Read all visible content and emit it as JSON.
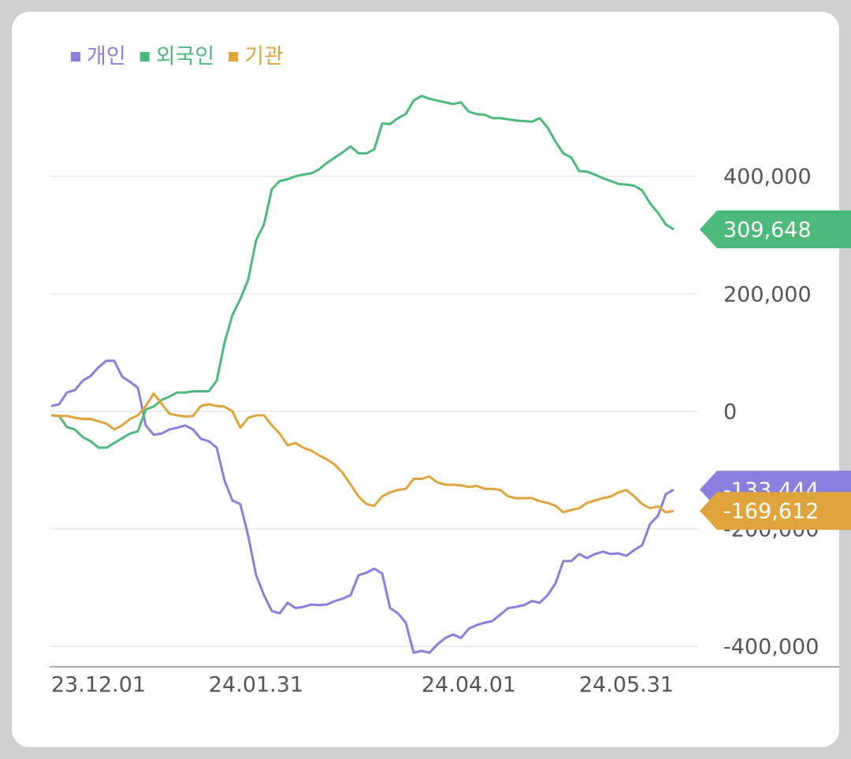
{
  "chart_data": {
    "type": "line",
    "categories": [
      null,
      null,
      null,
      null,
      null,
      null,
      "23.12.01",
      null,
      null,
      null,
      null,
      null,
      null,
      null,
      null,
      null,
      null,
      null,
      null,
      null,
      null,
      null,
      null,
      null,
      null,
      null,
      "24.01.31",
      null,
      null,
      null,
      null,
      null,
      null,
      null,
      null,
      null,
      null,
      null,
      null,
      null,
      null,
      null,
      null,
      null,
      null,
      null,
      null,
      null,
      null,
      null,
      null,
      null,
      null,
      "24.04.01",
      null,
      null,
      null,
      null,
      null,
      null,
      null,
      null,
      null,
      null,
      null,
      null,
      null,
      null,
      null,
      null,
      null,
      null,
      null,
      "24.05.31",
      null,
      null,
      null,
      null,
      null,
      null
    ],
    "series": [
      {
        "name": "개인",
        "color": "#8a7fdc",
        "last_label": "-133,444",
        "values": [
          9000,
          12000,
          32000,
          36000,
          52000,
          60000,
          75000,
          86000,
          86000,
          59000,
          50000,
          40000,
          -24000,
          -40000,
          -38000,
          -31000,
          -28000,
          -24000,
          -31000,
          -47000,
          -51000,
          -62000,
          -118000,
          -152000,
          -158000,
          -212000,
          -279000,
          -313000,
          -340000,
          -344000,
          -326000,
          -335000,
          -333000,
          -329000,
          -330000,
          -329000,
          -323000,
          -319000,
          -313000,
          -279000,
          -275000,
          -268000,
          -276000,
          -335000,
          -344000,
          -360000,
          -411000,
          -408000,
          -411000,
          -397000,
          -386000,
          -380000,
          -386000,
          -370000,
          -364000,
          -360000,
          -357000,
          -346000,
          -335000,
          -333000,
          -330000,
          -323000,
          -326000,
          -313000,
          -293000,
          -255000,
          -255000,
          -243000,
          -250000,
          -243000,
          -239000,
          -243000,
          -242000,
          -246000,
          -236000,
          -228000,
          -192000,
          -178000,
          -141000,
          -133444
        ]
      },
      {
        "name": "외국인",
        "color": "#4db97a",
        "last_label": "309,648",
        "values": [
          -7000,
          -8000,
          -27000,
          -31000,
          -44000,
          -51000,
          -62000,
          -62000,
          -54000,
          -46000,
          -38000,
          -34000,
          3000,
          8000,
          19000,
          25000,
          32000,
          32000,
          34000,
          34000,
          34000,
          52000,
          117000,
          164000,
          191000,
          224000,
          291000,
          318000,
          378000,
          392000,
          395000,
          400000,
          403000,
          405000,
          412000,
          423000,
          432000,
          441000,
          451000,
          439000,
          439000,
          446000,
          490000,
          489000,
          499000,
          506000,
          529000,
          537000,
          532000,
          529000,
          526000,
          523000,
          526000,
          510000,
          506000,
          505000,
          499000,
          499000,
          497000,
          495000,
          494000,
          493000,
          499000,
          483000,
          459000,
          439000,
          432000,
          409000,
          408000,
          403000,
          397000,
          392000,
          387000,
          386000,
          384000,
          376000,
          354000,
          338000,
          318000,
          309648
        ]
      },
      {
        "name": "기관",
        "color": "#e0a43c",
        "last_label": "-169,612",
        "values": [
          -7000,
          -8000,
          -8000,
          -11000,
          -13000,
          -13000,
          -17000,
          -21000,
          -31000,
          -24000,
          -13000,
          -7000,
          9000,
          30000,
          13000,
          -4000,
          -7000,
          -9000,
          -8000,
          9000,
          12000,
          9000,
          8000,
          0,
          -28000,
          -11000,
          -7000,
          -7000,
          -24000,
          -38000,
          -58000,
          -54000,
          -62000,
          -67000,
          -75000,
          -82000,
          -91000,
          -105000,
          -125000,
          -145000,
          -158000,
          -161000,
          -145000,
          -138000,
          -134000,
          -132000,
          -115000,
          -115000,
          -111000,
          -121000,
          -125000,
          -125000,
          -126000,
          -129000,
          -127000,
          -132000,
          -132000,
          -134000,
          -145000,
          -148000,
          -148000,
          -148000,
          -153000,
          -156000,
          -161000,
          -172000,
          -168000,
          -165000,
          -156000,
          -152000,
          -148000,
          -145000,
          -138000,
          -134000,
          -145000,
          -158000,
          -165000,
          -162000,
          -172000,
          -169612
        ]
      }
    ],
    "ylim": [
      -435000,
      566000
    ],
    "yticks": [
      {
        "value": 400000,
        "label": "400,000"
      },
      {
        "value": 200000,
        "label": "200,000"
      },
      0,
      {
        "value": -200000,
        "label": "-200,000"
      },
      {
        "value": -400000,
        "label": "-400,000"
      }
    ],
    "grid": true
  }
}
